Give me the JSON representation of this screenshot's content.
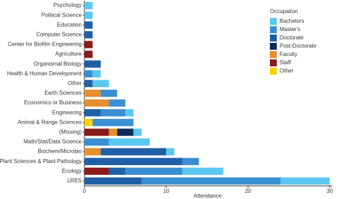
{
  "chart_data": {
    "type": "stacked-barh",
    "categories": [
      "Psychology",
      "Political Science",
      "Education",
      "Computer Science",
      "Center for Biofilm Engineering",
      "Agriculture",
      "Organismal Biology",
      "Health & Human Development",
      "Other",
      "Earth Sciences",
      "Economics or Business",
      "Engineering",
      "Animal & Range Sciences",
      "(Missing)",
      "Math/Stat/Data Science",
      "Biochem/Microbio",
      "Plant Sciences & Plant Pathology",
      "Ecology",
      "LRES"
    ],
    "series": [
      {
        "name": "Bachelors",
        "color": "#5bc8f0",
        "values": [
          1,
          1,
          0,
          0,
          0,
          0,
          0,
          1,
          2,
          0,
          0,
          1,
          0,
          1,
          5,
          1,
          0,
          5,
          6
        ]
      },
      {
        "name": "Master's",
        "color": "#3a8fd4",
        "values": [
          0,
          0,
          0,
          0,
          0,
          0,
          0,
          1,
          0,
          2,
          2,
          3,
          5,
          0,
          3,
          0,
          2,
          7,
          17
        ]
      },
      {
        "name": "Doctorate",
        "color": "#1f5fa8",
        "values": [
          0,
          0,
          1,
          1,
          0,
          0,
          2,
          0,
          1,
          0,
          0,
          2,
          0,
          0,
          0,
          8,
          12,
          2,
          7
        ]
      },
      {
        "name": "Post-Doctorate",
        "color": "#0d2a5c",
        "values": [
          0,
          0,
          0,
          0,
          0,
          0,
          0,
          0,
          0,
          0,
          0,
          0,
          0,
          2,
          0,
          0,
          0,
          0,
          0
        ]
      },
      {
        "name": "Faculty",
        "color": "#e58f2e",
        "values": [
          0,
          0,
          0,
          0,
          0,
          0,
          0,
          0,
          0,
          2,
          3,
          0,
          0,
          1,
          0,
          2,
          0,
          0,
          0
        ]
      },
      {
        "name": "Staff",
        "color": "#8b1a1a",
        "values": [
          0,
          0,
          0,
          0,
          1,
          1,
          0,
          0,
          0,
          0,
          0,
          0,
          0,
          3,
          0,
          0,
          0,
          3,
          0
        ]
      },
      {
        "name": "Other",
        "color": "#f5d200",
        "values": [
          0,
          0,
          0,
          0,
          0,
          0,
          0,
          0,
          0,
          0,
          0,
          0,
          1,
          0,
          0,
          0,
          0,
          0,
          0
        ]
      }
    ],
    "x_label": "Attendance",
    "legend_title": "Occupation",
    "xlim": [
      0,
      30.3
    ],
    "xticks": [
      0,
      10,
      20,
      30
    ],
    "grid": false
  }
}
